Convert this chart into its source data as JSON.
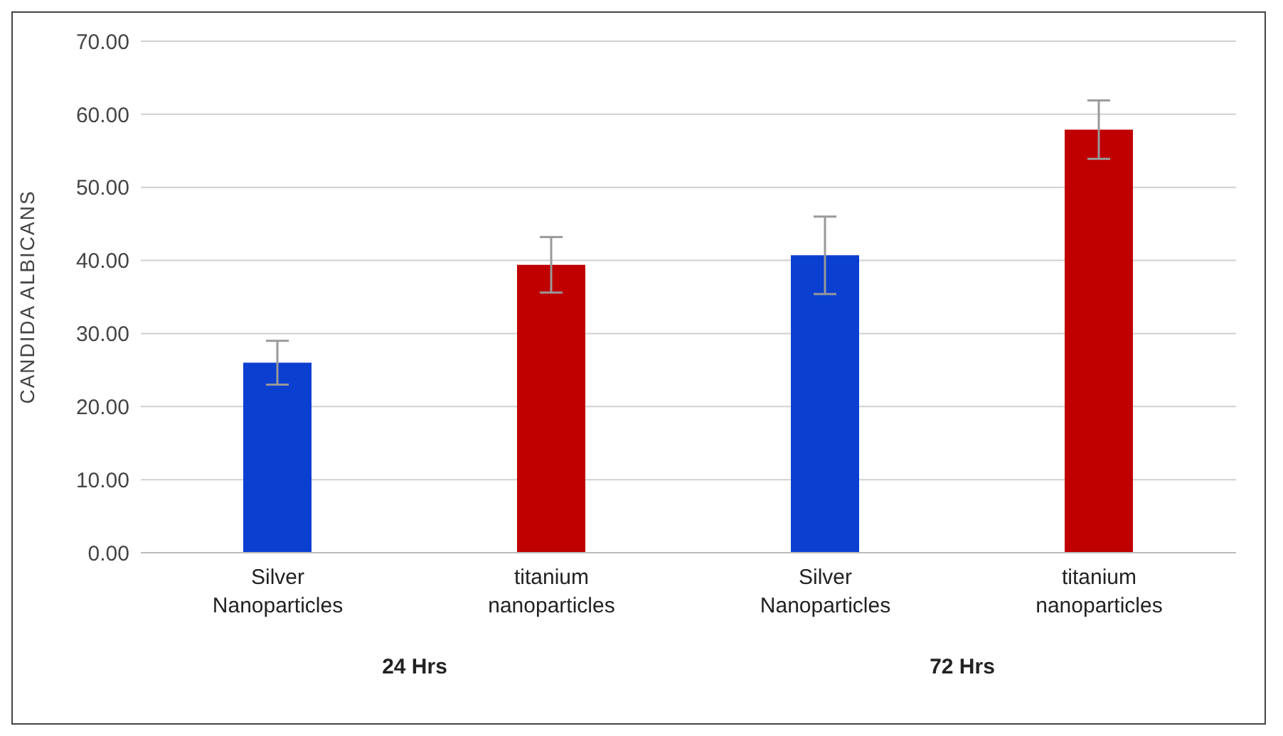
{
  "chart_data": {
    "type": "bar",
    "ylabel": "CANDIDA ALBICANS",
    "categories": [
      "Silver Nanoparticles",
      "titanium nanoparticles",
      "Silver Nanoparticles",
      "titanium nanoparticles"
    ],
    "values": [
      26.0,
      39.4,
      40.7,
      57.9
    ],
    "colors": [
      "#0a3fd0",
      "#c00000",
      "#0a3fd0",
      "#c00000"
    ],
    "errors": [
      3.0,
      3.8,
      5.3,
      4.0
    ],
    "ylim": [
      0,
      70
    ],
    "yticks": [
      {
        "value": 0,
        "label": "0.00"
      },
      {
        "value": 10,
        "label": "10.00"
      },
      {
        "value": 20,
        "label": "20.00"
      },
      {
        "value": 30,
        "label": "30.00"
      },
      {
        "value": 40,
        "label": "40.00"
      },
      {
        "value": 50,
        "label": "50.00"
      },
      {
        "value": 60,
        "label": "60.00"
      },
      {
        "value": 70,
        "label": "70.00"
      }
    ],
    "grid": "y",
    "annotations": [
      "24 Hrs",
      "72 Hrs"
    ]
  }
}
